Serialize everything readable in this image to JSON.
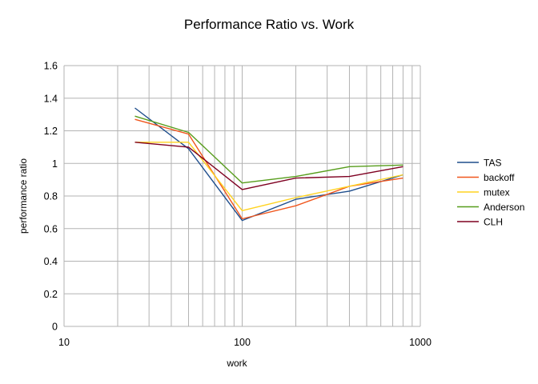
{
  "chart_data": {
    "type": "line",
    "title": "Performance Ratio vs. Work",
    "xlabel": "work",
    "ylabel": "performance ratio",
    "xscale": "log",
    "xlim": [
      10,
      1000
    ],
    "ylim": [
      0,
      1.6
    ],
    "xticks": [
      "10",
      "100",
      "1000"
    ],
    "yticks": [
      "0",
      "0.2",
      "0.4",
      "0.6",
      "0.8",
      "1",
      "1.2",
      "1.4",
      "1.6"
    ],
    "grid": "on",
    "legend": "right",
    "x": [
      25,
      50,
      100,
      200,
      400,
      800
    ],
    "series": [
      {
        "name": "TAS",
        "color": "#1f4e8c",
        "values": [
          1.34,
          1.09,
          0.65,
          0.78,
          0.83,
          0.93
        ]
      },
      {
        "name": "backoff",
        "color": "#f0561d",
        "values": [
          1.27,
          1.18,
          0.66,
          0.74,
          0.86,
          0.91
        ]
      },
      {
        "name": "mutex",
        "color": "#ffd320",
        "values": [
          1.13,
          1.13,
          0.71,
          0.79,
          0.86,
          0.93
        ]
      },
      {
        "name": "Anderson",
        "color": "#579d1c",
        "values": [
          1.29,
          1.19,
          0.88,
          0.92,
          0.98,
          0.99
        ]
      },
      {
        "name": "CLH",
        "color": "#7e0021",
        "values": [
          1.13,
          1.1,
          0.84,
          0.91,
          0.92,
          0.98
        ]
      }
    ]
  }
}
